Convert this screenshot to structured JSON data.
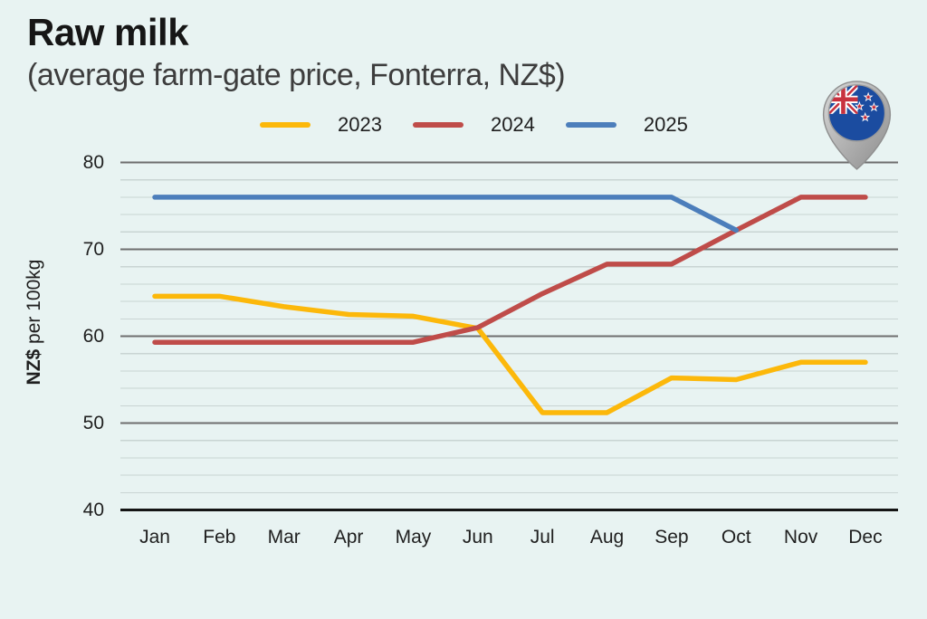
{
  "header": {
    "title": "Raw milk",
    "subtitle": "(average farm-gate price, Fonterra, NZ$)"
  },
  "y_axis": {
    "label_bold": "NZ$",
    "label_rest": " per 100kg"
  },
  "icons": {
    "flag_pin": "nz-flag-map-pin-icon"
  },
  "colors": {
    "background": "#E8F3F2",
    "grid_minor": "#C9D4D3",
    "grid_major": "#6E6E6E",
    "axis": "#141414",
    "text": "#1F1F1F",
    "series_2023": "#FCB80A",
    "series_2024": "#BF4C49",
    "series_2025": "#4C7EBB"
  },
  "chart_data": {
    "type": "line",
    "title": "Raw milk",
    "subtitle": "(average farm-gate price, Fonterra, NZ$)",
    "ylabel": "NZ$ per 100kg",
    "xlabel": "",
    "categories": [
      "Jan",
      "Feb",
      "Mar",
      "Apr",
      "May",
      "Jun",
      "Jul",
      "Aug",
      "Sep",
      "Oct",
      "Nov",
      "Dec"
    ],
    "series": [
      {
        "name": "2023",
        "color": "#FCB80A",
        "values": [
          64.6,
          64.6,
          63.4,
          62.5,
          62.3,
          60.9,
          51.2,
          51.2,
          55.2,
          55.0,
          57.0,
          57.0
        ]
      },
      {
        "name": "2024",
        "color": "#BF4C49",
        "values": [
          59.3,
          59.3,
          59.3,
          59.3,
          59.3,
          61.0,
          64.9,
          68.3,
          68.3,
          72.2,
          76.0,
          76.0
        ]
      },
      {
        "name": "2025",
        "color": "#4C7EBB",
        "values": [
          76.0,
          76.0,
          76.0,
          76.0,
          76.0,
          76.0,
          76.0,
          76.0,
          76.0,
          72.2,
          null,
          null
        ]
      }
    ],
    "ylim": [
      40,
      80
    ],
    "yticks": [
      40,
      50,
      60,
      70,
      80
    ],
    "minor_grid_step": 2,
    "grid": true,
    "legend_position": "top-center"
  }
}
